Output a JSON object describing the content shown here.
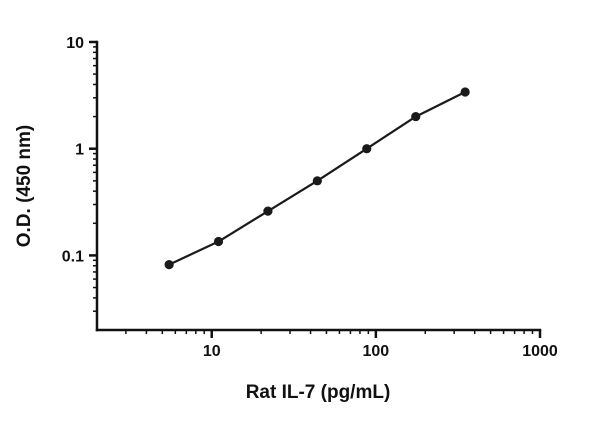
{
  "chart_data": {
    "type": "scatter",
    "title": "",
    "xlabel": "Rat IL-7 (pg/mL)",
    "ylabel": "O.D. (450 nm)",
    "xscale": "log",
    "yscale": "log",
    "xlim": [
      2,
      1000
    ],
    "ylim": [
      0.02,
      10
    ],
    "x_major_ticks": [
      10,
      100,
      1000
    ],
    "x_tick_labels": [
      "10",
      "100",
      "1000"
    ],
    "y_major_ticks": [
      0.1,
      1,
      10
    ],
    "y_tick_labels": [
      "0.1",
      "1",
      "10"
    ],
    "grid": "off",
    "legend": "none",
    "points": [
      {
        "x": 5.5,
        "y": 0.082
      },
      {
        "x": 11,
        "y": 0.135
      },
      {
        "x": 22,
        "y": 0.26
      },
      {
        "x": 44,
        "y": 0.5
      },
      {
        "x": 88,
        "y": 1.0
      },
      {
        "x": 175,
        "y": 2.0
      },
      {
        "x": 350,
        "y": 3.4
      }
    ],
    "line_color": "#1a1a1a",
    "marker_color": "#1a1a1a",
    "axis_color": "#111111"
  }
}
